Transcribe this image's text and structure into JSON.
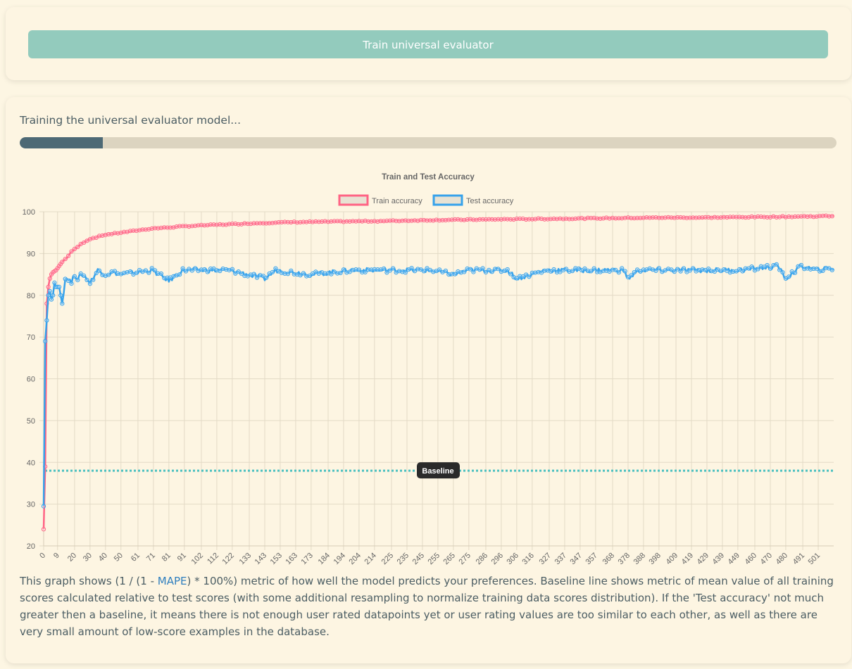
{
  "header": {
    "train_button": "Train universal evaluator"
  },
  "status": {
    "text": "Training the universal evaluator model...",
    "progress": 0.102
  },
  "description": {
    "before": "This graph shows (1 / (1 - ",
    "link": "MAPE",
    "after": ") * 100%) metric of how well the model predicts your preferences. Baseline line shows metric of mean value of all training scores calculated relative to test scores (with some additional resampling to normalize training data scores distribution). If the 'Test accuracy' not much greater then a baseline, it means there is not enough user rated datapoints yet or user rating values are too similar to each other, as well as there are very small amount of low-score examples in the database."
  },
  "chart_data": {
    "type": "line",
    "title": "Train and Test Accuracy",
    "xlabel": "",
    "ylabel": "",
    "ylim": [
      20,
      100
    ],
    "yticks": [
      20,
      30,
      40,
      50,
      60,
      70,
      80,
      90,
      100
    ],
    "xlim": [
      0,
      511
    ],
    "xticks": [
      0,
      9,
      20,
      30,
      40,
      50,
      61,
      71,
      81,
      91,
      102,
      112,
      122,
      133,
      143,
      153,
      163,
      173,
      184,
      194,
      204,
      214,
      225,
      235,
      245,
      255,
      265,
      275,
      286,
      296,
      306,
      316,
      327,
      337,
      347,
      357,
      368,
      378,
      388,
      398,
      409,
      419,
      429,
      439,
      449,
      460,
      470,
      480,
      491,
      501
    ],
    "grid": true,
    "legend": "top",
    "annotation": {
      "label": "Baseline",
      "y": 38,
      "color": "#4bc0c0"
    },
    "series": [
      {
        "name": "Train accuracy",
        "color": "#ff6384",
        "x": [
          0,
          1,
          2,
          3,
          4,
          5,
          6,
          8,
          10,
          12,
          15,
          18,
          20,
          25,
          30,
          35,
          40,
          50,
          60,
          70,
          80,
          90,
          100,
          120,
          140,
          160,
          180,
          200,
          225,
          250,
          275,
          300,
          325,
          350,
          375,
          400,
          425,
          450,
          475,
          500,
          511
        ],
        "y": [
          24,
          39,
          78,
          82,
          84,
          85,
          85.5,
          86,
          87,
          88,
          89,
          90.5,
          91,
          92.5,
          93.5,
          94,
          94.5,
          95,
          95.5,
          96,
          96.2,
          96.5,
          96.7,
          97,
          97.3,
          97.5,
          97.6,
          97.7,
          97.8,
          98,
          98.1,
          98.2,
          98.3,
          98.4,
          98.5,
          98.6,
          98.6,
          98.7,
          98.8,
          98.9,
          99
        ]
      },
      {
        "name": "Test accuracy",
        "color": "#36a2eb",
        "x": [
          0,
          1,
          2,
          3,
          4,
          5,
          6,
          7,
          8,
          9,
          10,
          12,
          14,
          16,
          18,
          20,
          22,
          25,
          28,
          30,
          35,
          40,
          45,
          50,
          60,
          70,
          81,
          90,
          100,
          120,
          143,
          150,
          173,
          200,
          225,
          250,
          265,
          275,
          300,
          306,
          325,
          350,
          375,
          378,
          385,
          400,
          425,
          450,
          475,
          480,
          490,
          500,
          511
        ],
        "y": [
          29.5,
          69,
          74,
          80,
          81,
          79,
          80,
          83,
          82,
          82,
          82,
          78,
          84,
          84,
          83,
          85,
          84,
          85,
          84,
          83,
          86,
          85,
          85.5,
          85,
          85.5,
          86,
          83.5,
          86,
          86,
          86,
          84,
          86,
          85,
          86,
          86,
          86,
          85,
          86,
          86,
          84,
          86,
          86,
          86,
          84,
          86,
          86,
          86,
          86,
          87,
          84,
          87,
          86,
          86.5
        ]
      }
    ]
  }
}
